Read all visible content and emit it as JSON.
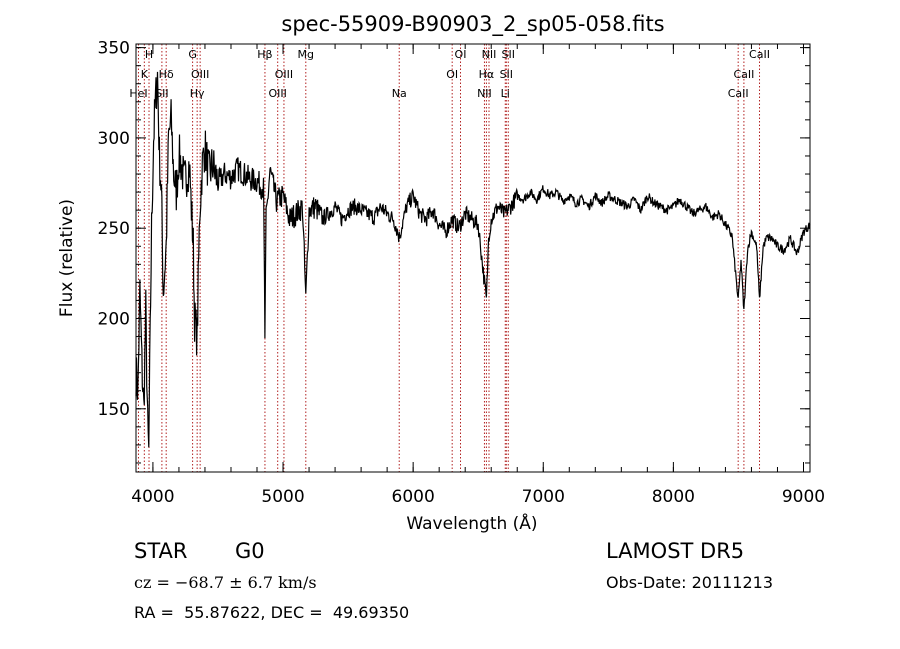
{
  "chart_data": {
    "type": "line",
    "title": "spec-55909-B90903_2_sp05-058.fits",
    "xlabel": "Wavelength (Å)",
    "ylabel": "Flux (relative)",
    "xlim": [
      3870,
      9050
    ],
    "ylim": [
      115,
      352
    ],
    "xticks": [
      4000,
      5000,
      6000,
      7000,
      8000,
      9000
    ],
    "yticks": [
      150,
      200,
      250,
      300,
      350
    ],
    "grid": false,
    "series": [
      {
        "x": [
          3870,
          3885,
          3900,
          3915,
          3930,
          3945,
          3960,
          3968,
          3975,
          3990,
          4005,
          4020,
          4035,
          4050,
          4065,
          4080,
          4102,
          4120,
          4140,
          4160,
          4180,
          4200,
          4220,
          4240,
          4260,
          4280,
          4300,
          4310,
          4320,
          4340,
          4360,
          4380,
          4400,
          4430,
          4460,
          4500,
          4550,
          4600,
          4650,
          4700,
          4750,
          4800,
          4850,
          4861,
          4870,
          4900,
          4950,
          5000,
          5050,
          5100,
          5150,
          5175,
          5200,
          5250,
          5300,
          5350,
          5400,
          5450,
          5500,
          5550,
          5600,
          5650,
          5700,
          5750,
          5800,
          5850,
          5893,
          5950,
          6000,
          6050,
          6100,
          6150,
          6200,
          6250,
          6300,
          6350,
          6400,
          6450,
          6500,
          6563,
          6580,
          6600,
          6650,
          6700,
          6750,
          6800,
          6850,
          6900,
          6950,
          7000,
          7050,
          7100,
          7150,
          7200,
          7250,
          7300,
          7350,
          7400,
          7450,
          7500,
          7550,
          7600,
          7650,
          7700,
          7750,
          7800,
          7850,
          7900,
          7950,
          8000,
          8050,
          8100,
          8150,
          8200,
          8250,
          8300,
          8350,
          8400,
          8450,
          8498,
          8520,
          8542,
          8570,
          8600,
          8640,
          8662,
          8690,
          8720,
          8760,
          8800,
          8850,
          8900,
          8950,
          9000,
          9050
        ],
        "y": [
          170,
          160,
          215,
          175,
          150,
          205,
          140,
          125,
          170,
          250,
          300,
          320,
          335,
          290,
          270,
          215,
          240,
          300,
          310,
          280,
          270,
          290,
          285,
          275,
          280,
          285,
          255,
          240,
          200,
          190,
          260,
          285,
          295,
          280,
          285,
          275,
          280,
          278,
          283,
          280,
          277,
          276,
          272,
          190,
          255,
          282,
          265,
          268,
          255,
          258,
          262,
          210,
          260,
          262,
          255,
          258,
          262,
          255,
          260,
          262,
          260,
          258,
          256,
          262,
          258,
          255,
          245,
          262,
          268,
          258,
          255,
          260,
          252,
          248,
          255,
          250,
          258,
          255,
          252,
          210,
          245,
          255,
          262,
          258,
          262,
          268,
          266,
          270,
          266,
          272,
          268,
          270,
          265,
          268,
          264,
          266,
          262,
          268,
          264,
          268,
          266,
          264,
          262,
          266,
          260,
          268,
          264,
          262,
          260,
          262,
          266,
          262,
          258,
          260,
          262,
          256,
          258,
          252,
          246,
          210,
          232,
          204,
          238,
          248,
          240,
          210,
          240,
          245,
          244,
          240,
          238,
          244,
          236,
          248,
          252
        ]
      }
    ],
    "lines": [
      {
        "name": "H",
        "x": 3970,
        "row": 0
      },
      {
        "name": "K",
        "x": 3934,
        "row": 1
      },
      {
        "name": "HeI",
        "x": 3889,
        "row": 2
      },
      {
        "name": "Hδ",
        "x": 4102,
        "row": 1
      },
      {
        "name": "SII",
        "x": 4069,
        "row": 2
      },
      {
        "name": "G",
        "x": 4305,
        "row": 0
      },
      {
        "name": "OIII",
        "x": 4363,
        "row": 1
      },
      {
        "name": "Hγ",
        "x": 4340,
        "row": 2
      },
      {
        "name": "Hβ",
        "x": 4861,
        "row": 0
      },
      {
        "name": "OIII",
        "x": 5007,
        "row": 1
      },
      {
        "name": "OIII",
        "x": 4959,
        "row": 2
      },
      {
        "name": "Mg",
        "x": 5175,
        "row": 0
      },
      {
        "name": "Na",
        "x": 5893,
        "row": 2
      },
      {
        "name": "OI",
        "x": 6364,
        "row": 0
      },
      {
        "name": "OI",
        "x": 6300,
        "row": 1
      },
      {
        "name": "NII",
        "x": 6583,
        "row": 0
      },
      {
        "name": "Hα",
        "x": 6563,
        "row": 1
      },
      {
        "name": "NII",
        "x": 6548,
        "row": 2
      },
      {
        "name": "SII",
        "x": 6731,
        "row": 0
      },
      {
        "name": "SII",
        "x": 6716,
        "row": 1
      },
      {
        "name": "Li",
        "x": 6708,
        "row": 2
      },
      {
        "name": "CaII",
        "x": 8662,
        "row": 0
      },
      {
        "name": "CaII",
        "x": 8542,
        "row": 1
      },
      {
        "name": "CaII",
        "x": 8498,
        "row": 2
      }
    ]
  },
  "info": {
    "class": "STAR",
    "subclass": "G0",
    "survey": "LAMOST DR5",
    "cz": "cz = −68.7 ± 6.7 km/s",
    "obs_date": "Obs-Date: 20111213",
    "coords": "RA =  55.87622, DEC =  49.69350"
  }
}
